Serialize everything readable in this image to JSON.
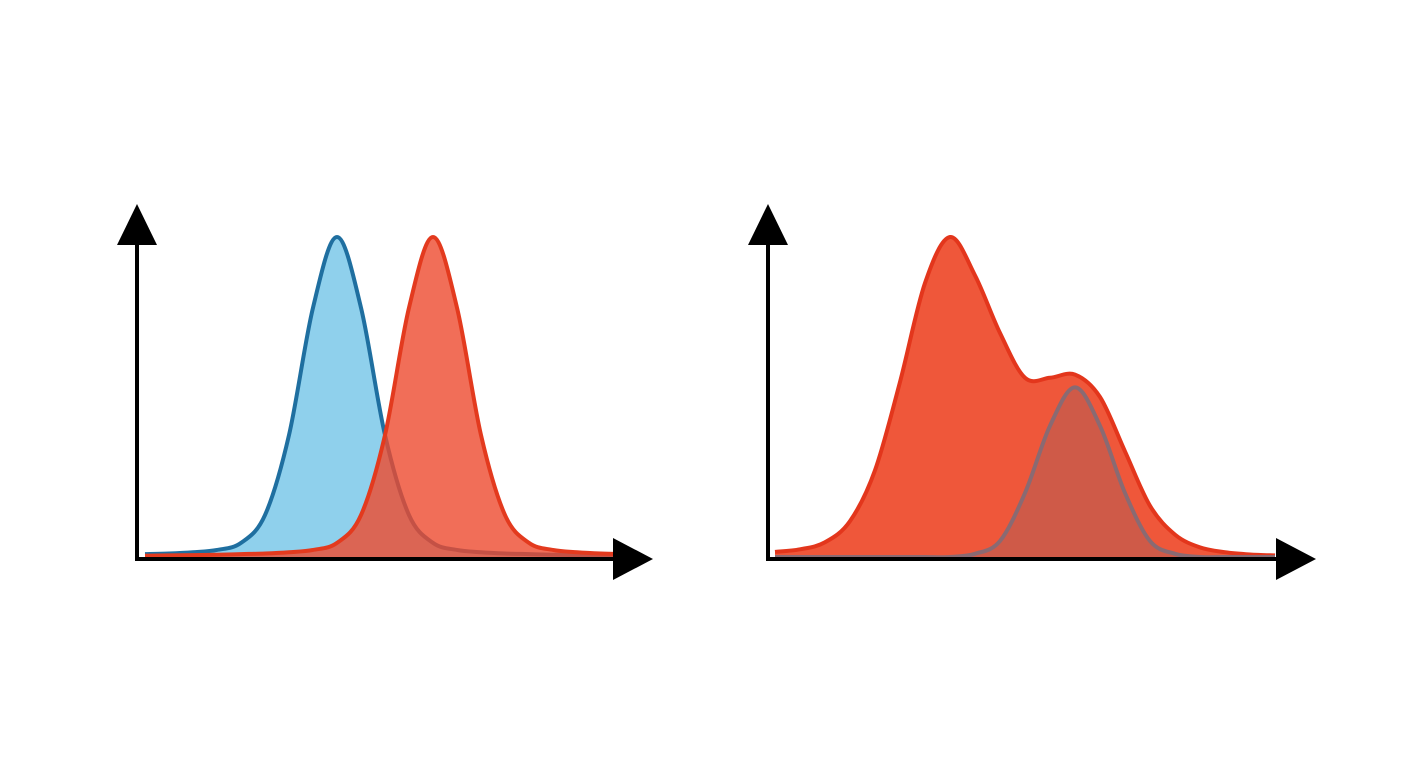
{
  "chart_data": [
    {
      "type": "area",
      "x": [
        0,
        0.5,
        1,
        1.5,
        2,
        2.5,
        3,
        3.5,
        4,
        4.5,
        5,
        5.5,
        6,
        6.5,
        7,
        7.5,
        8,
        8.5,
        9,
        9.5,
        10
      ],
      "xlim": [
        0,
        10
      ],
      "ylim": [
        0,
        1.1
      ],
      "series": [
        {
          "color": "#1f6fa0",
          "fill": "#8fd0ec",
          "opacity": 1,
          "values": [
            0.009,
            0.011,
            0.015,
            0.022,
            0.044,
            0.131,
            0.381,
            0.779,
            1.0,
            0.779,
            0.381,
            0.131,
            0.044,
            0.022,
            0.015,
            0.011,
            0.009,
            0.007,
            0.006,
            0.005,
            0.004
          ]
        },
        {
          "color": "#e33a1e",
          "fill": "#ee4a2e",
          "opacity": 0.8,
          "values": [
            0.004,
            0.005,
            0.006,
            0.007,
            0.009,
            0.011,
            0.015,
            0.022,
            0.044,
            0.131,
            0.381,
            0.779,
            1.0,
            0.779,
            0.381,
            0.131,
            0.044,
            0.022,
            0.015,
            0.011,
            0.009
          ]
        }
      ]
    },
    {
      "type": "area",
      "x": [
        0,
        0.5,
        1,
        1.5,
        2,
        2.5,
        3,
        3.5,
        4,
        4.5,
        5,
        5.5,
        6,
        6.5,
        7,
        7.5,
        8,
        8.5,
        9,
        9.5,
        10
      ],
      "xlim": [
        0,
        10
      ],
      "ylim": [
        0,
        1.1
      ],
      "series": [
        {
          "color": "#e3361c",
          "fill": "#ef573a",
          "opacity": 1,
          "values": [
            0.016,
            0.024,
            0.046,
            0.112,
            0.271,
            0.547,
            0.856,
            1.0,
            0.88,
            0.7,
            0.56,
            0.56,
            0.57,
            0.5,
            0.33,
            0.16,
            0.07,
            0.03,
            0.015,
            0.008,
            0.005
          ]
        },
        {
          "color": "#8a6a72",
          "fill": "#a8605a",
          "opacity": 0.45,
          "values": [
            0,
            0,
            0,
            0,
            0,
            0,
            0,
            0,
            0.01,
            0.05,
            0.2,
            0.41,
            0.53,
            0.41,
            0.2,
            0.05,
            0.01,
            0,
            0,
            0,
            0
          ]
        }
      ]
    }
  ]
}
